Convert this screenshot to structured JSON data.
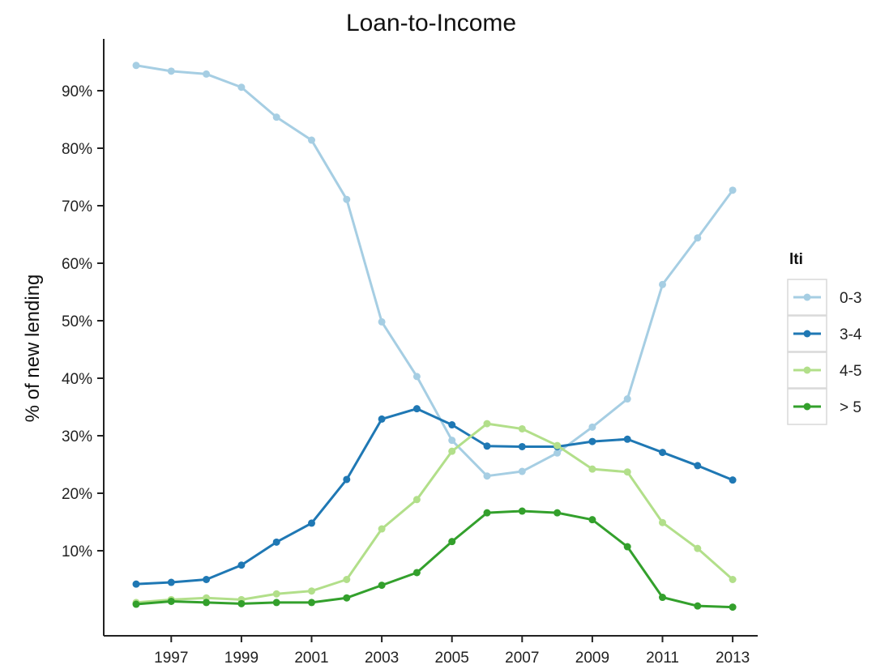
{
  "chart_data": {
    "type": "line",
    "title": "Loan-to-Income",
    "xlabel": "",
    "ylabel": "% of new lending",
    "x": [
      1996,
      1997,
      1998,
      1999,
      2000,
      2001,
      2002,
      2003,
      2004,
      2005,
      2006,
      2007,
      2008,
      2009,
      2010,
      2011,
      2012,
      2013
    ],
    "x_ticks": [
      "1997",
      "1999",
      "2001",
      "2003",
      "2005",
      "2007",
      "2009",
      "2011",
      "2013"
    ],
    "y_ticks": [
      "10%",
      "20%",
      "30%",
      "40%",
      "50%",
      "60%",
      "70%",
      "80%",
      "90%"
    ],
    "ylim": [
      0,
      100
    ],
    "xlim": [
      1995.2,
      2013.8
    ],
    "grid": false,
    "legend": {
      "title": "lti",
      "placement": "right",
      "entries": [
        "0-3",
        "3-4",
        "4-5",
        "> 5"
      ]
    },
    "series": [
      {
        "name": "0-3",
        "color": "#a6cee3",
        "values": [
          94.4,
          93.4,
          92.9,
          90.6,
          85.4,
          81.4,
          71.1,
          49.8,
          40.3,
          29.2,
          23.0,
          23.8,
          27.0,
          31.5,
          36.4,
          56.3,
          64.4,
          72.7
        ]
      },
      {
        "name": "3-4",
        "color": "#1f78b4",
        "values": [
          4.2,
          4.5,
          5.0,
          7.5,
          11.5,
          14.8,
          22.4,
          32.9,
          34.7,
          31.9,
          28.2,
          28.1,
          28.1,
          29.0,
          29.4,
          27.1,
          24.8,
          22.3
        ]
      },
      {
        "name": "4-5",
        "color": "#b2df8a",
        "values": [
          1.0,
          1.5,
          1.8,
          1.5,
          2.5,
          3.0,
          5.0,
          13.8,
          18.9,
          27.3,
          32.1,
          31.2,
          28.3,
          24.2,
          23.7,
          14.9,
          10.4,
          5.0
        ]
      },
      {
        "name": "> 5",
        "color": "#33a02c",
        "values": [
          0.7,
          1.2,
          1.0,
          0.8,
          1.0,
          1.0,
          1.8,
          4.0,
          6.2,
          11.6,
          16.6,
          16.9,
          16.6,
          15.4,
          10.7,
          1.9,
          0.4,
          0.2
        ]
      }
    ]
  }
}
